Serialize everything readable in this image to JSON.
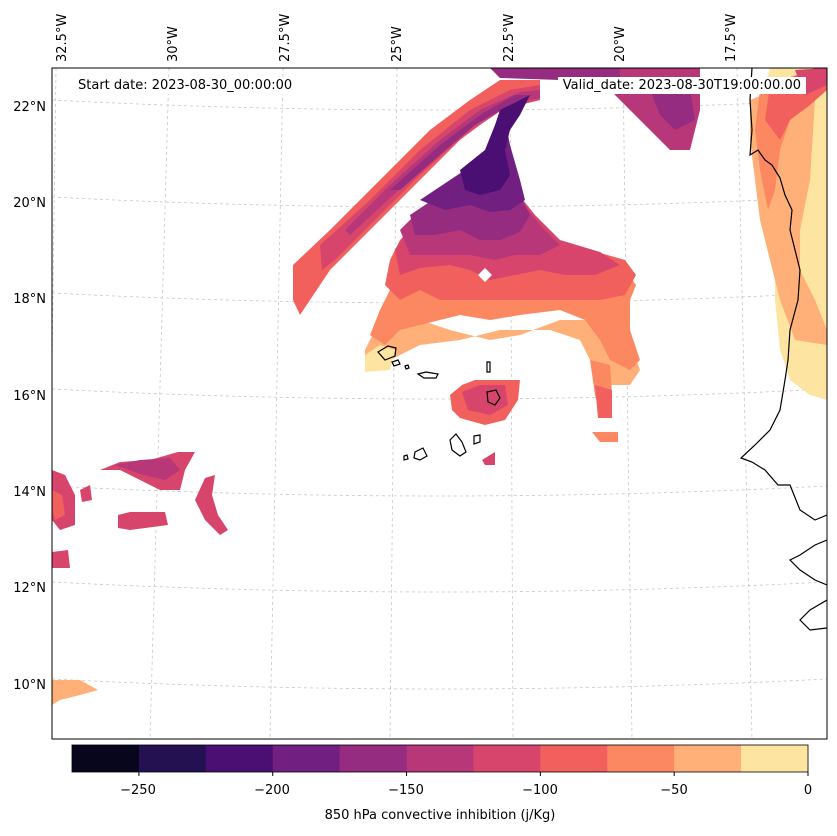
{
  "header": {
    "start_date": "Start date: 2023-08-30_00:00:00",
    "valid_date": "Valid_date: 2023-08-30T19:00:00.00"
  },
  "axes": {
    "lon_labels": [
      "32.5°W",
      "30°W",
      "27.5°W",
      "25°W",
      "22.5°W",
      "20°W",
      "17.5°W"
    ],
    "lat_labels": [
      "22°N",
      "20°N",
      "18°N",
      "16°N",
      "14°N",
      "12°N",
      "10°N"
    ]
  },
  "colorbar": {
    "title": "850 hPa convective inhibition (j/Kg)",
    "ticks": [
      "−250",
      "−200",
      "−150",
      "−100",
      "−50",
      "0"
    ],
    "levels": [
      -275,
      -250,
      -225,
      -200,
      -175,
      -150,
      -125,
      -100,
      -75,
      -50,
      -25,
      0
    ],
    "colors": [
      "#07061c",
      "#231151",
      "#4b0f73",
      "#711f81",
      "#952c80",
      "#b73779",
      "#d8456c",
      "#f1605d",
      "#fb8861",
      "#feb078",
      "#fde5a1"
    ]
  },
  "map": {
    "variable": "850 hPa convective inhibition",
    "units": "j/Kg",
    "lon_range": [
      -33,
      -16
    ],
    "lat_range": [
      9,
      23
    ]
  }
}
